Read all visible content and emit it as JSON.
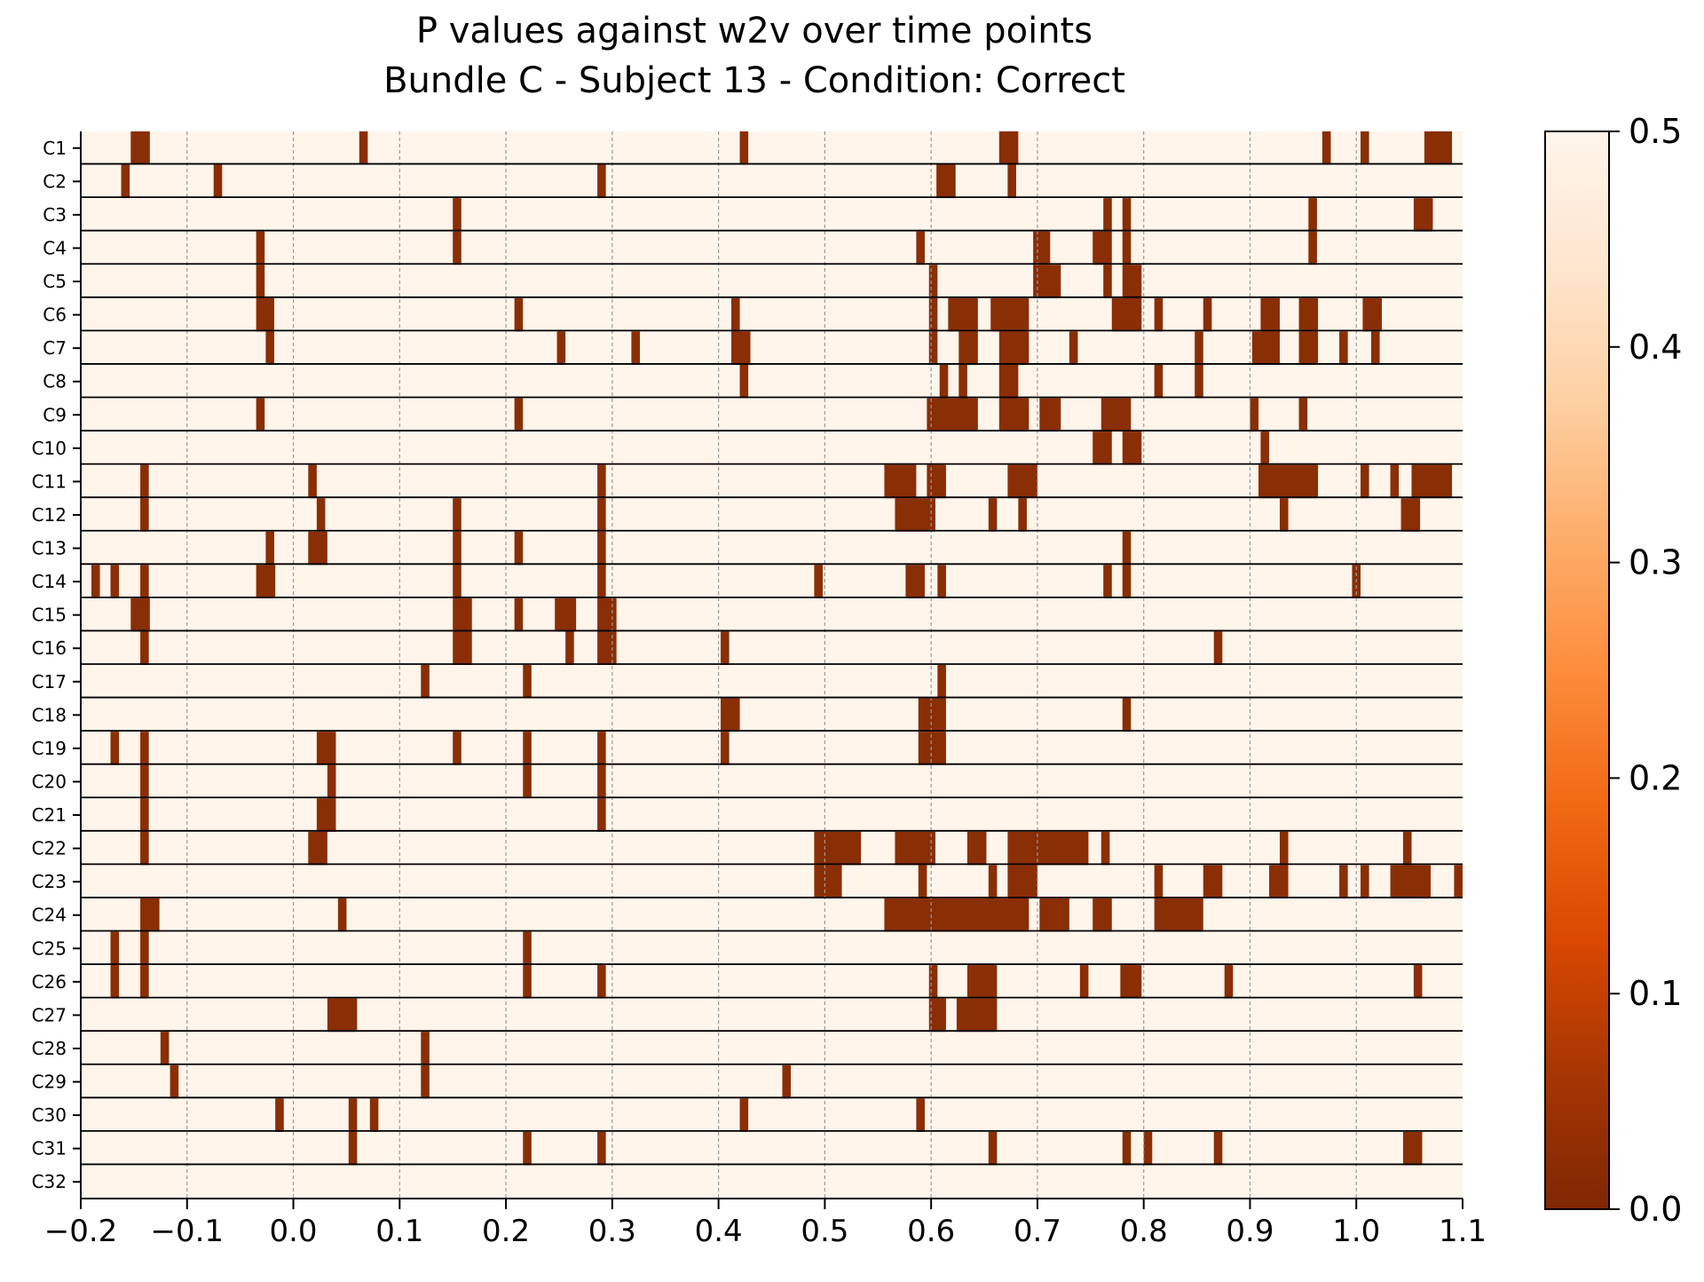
{
  "chart_data": {
    "type": "heatmap",
    "title": [
      "P values against w2v over time points",
      "Bundle C - Subject 13 - Condition: Correct"
    ],
    "xlabel": "",
    "ylabel": "",
    "xlim": [
      -0.2,
      1.1
    ],
    "xticks": [
      -0.2,
      -0.1,
      0.0,
      0.1,
      0.2,
      0.3,
      0.4,
      0.5,
      0.6,
      0.7,
      0.8,
      0.9,
      1.0,
      1.1
    ],
    "xtick_labels": [
      "−0.2",
      "−0.1",
      "0.0",
      "0.1",
      "0.2",
      "0.3",
      "0.4",
      "0.5",
      "0.6",
      "0.7",
      "0.8",
      "0.9",
      "1.0",
      "1.1"
    ],
    "grid": "vertical dashed at x ticks",
    "colormap": "Oranges reversed",
    "colorbar": {
      "range": [
        0.0,
        0.5
      ],
      "ticks": [
        0.0,
        0.1,
        0.2,
        0.3,
        0.4,
        0.5
      ],
      "tick_labels": [
        "0.0",
        "0.1",
        "0.2",
        "0.3",
        "0.4",
        "0.5"
      ],
      "colors": [
        "#7f2704",
        "#a63603",
        "#d94801",
        "#f16913",
        "#fd8d3c",
        "#fdae6b",
        "#fdd0a2",
        "#fee6ce",
        "#fff5eb"
      ]
    },
    "background_value": 0.5,
    "significant_color": "#8a2e06",
    "series": [
      {
        "name": "C1",
        "segments": [
          [
            -0.153,
            -0.135
          ],
          [
            0.062,
            0.07
          ],
          [
            0.42,
            0.428
          ],
          [
            0.664,
            0.682
          ],
          [
            0.968,
            0.976
          ],
          [
            1.004,
            1.012
          ],
          [
            1.064,
            1.09
          ]
        ]
      },
      {
        "name": "C2",
        "segments": [
          [
            -0.162,
            -0.154
          ],
          [
            -0.075,
            -0.067
          ],
          [
            0.286,
            0.294
          ],
          [
            0.605,
            0.623
          ],
          [
            0.672,
            0.68
          ]
        ]
      },
      {
        "name": "C3",
        "segments": [
          [
            0.15,
            0.158
          ],
          [
            0.762,
            0.77
          ],
          [
            0.78,
            0.788
          ],
          [
            0.955,
            0.963
          ],
          [
            1.054,
            1.072
          ]
        ]
      },
      {
        "name": "C4",
        "segments": [
          [
            -0.035,
            -0.027
          ],
          [
            0.15,
            0.158
          ],
          [
            0.586,
            0.594
          ],
          [
            0.696,
            0.712
          ],
          [
            0.752,
            0.77
          ],
          [
            0.78,
            0.788
          ],
          [
            0.955,
            0.963
          ]
        ]
      },
      {
        "name": "C5",
        "segments": [
          [
            -0.035,
            -0.027
          ],
          [
            0.598,
            0.606
          ],
          [
            0.696,
            0.722
          ],
          [
            0.762,
            0.77
          ],
          [
            0.78,
            0.798
          ]
        ]
      },
      {
        "name": "C6",
        "segments": [
          [
            -0.035,
            -0.018
          ],
          [
            0.208,
            0.216
          ],
          [
            0.412,
            0.42
          ],
          [
            0.598,
            0.606
          ],
          [
            0.616,
            0.644
          ],
          [
            0.656,
            0.692
          ],
          [
            0.77,
            0.798
          ],
          [
            0.81,
            0.818
          ],
          [
            0.856,
            0.864
          ],
          [
            0.91,
            0.928
          ],
          [
            0.946,
            0.964
          ],
          [
            1.006,
            1.024
          ]
        ]
      },
      {
        "name": "C7",
        "segments": [
          [
            -0.026,
            -0.018
          ],
          [
            0.248,
            0.256
          ],
          [
            0.318,
            0.326
          ],
          [
            0.412,
            0.43
          ],
          [
            0.598,
            0.606
          ],
          [
            0.626,
            0.644
          ],
          [
            0.664,
            0.692
          ],
          [
            0.73,
            0.738
          ],
          [
            0.848,
            0.856
          ],
          [
            0.902,
            0.928
          ],
          [
            0.946,
            0.964
          ],
          [
            0.984,
            0.992
          ],
          [
            1.014,
            1.022
          ]
        ]
      },
      {
        "name": "C8",
        "segments": [
          [
            0.42,
            0.428
          ],
          [
            0.608,
            0.616
          ],
          [
            0.626,
            0.634
          ],
          [
            0.664,
            0.682
          ],
          [
            0.81,
            0.818
          ],
          [
            0.848,
            0.856
          ]
        ]
      },
      {
        "name": "C9",
        "segments": [
          [
            -0.035,
            -0.027
          ],
          [
            0.208,
            0.216
          ],
          [
            0.596,
            0.644
          ],
          [
            0.664,
            0.692
          ],
          [
            0.702,
            0.722
          ],
          [
            0.76,
            0.788
          ],
          [
            0.9,
            0.908
          ],
          [
            0.946,
            0.954
          ]
        ]
      },
      {
        "name": "C10",
        "segments": [
          [
            0.752,
            0.77
          ],
          [
            0.78,
            0.798
          ],
          [
            0.91,
            0.918
          ]
        ]
      },
      {
        "name": "C11",
        "segments": [
          [
            -0.144,
            -0.136
          ],
          [
            0.014,
            0.022
          ],
          [
            0.286,
            0.294
          ],
          [
            0.556,
            0.586
          ],
          [
            0.596,
            0.614
          ],
          [
            0.672,
            0.7
          ],
          [
            0.908,
            0.964
          ],
          [
            1.004,
            1.012
          ],
          [
            1.032,
            1.04
          ],
          [
            1.052,
            1.09
          ]
        ]
      },
      {
        "name": "C12",
        "segments": [
          [
            -0.144,
            -0.136
          ],
          [
            0.022,
            0.03
          ],
          [
            0.15,
            0.158
          ],
          [
            0.286,
            0.294
          ],
          [
            0.566,
            0.604
          ],
          [
            0.654,
            0.662
          ],
          [
            0.682,
            0.69
          ],
          [
            0.928,
            0.936
          ],
          [
            1.042,
            1.06
          ]
        ]
      },
      {
        "name": "C13",
        "segments": [
          [
            -0.026,
            -0.018
          ],
          [
            0.014,
            0.032
          ],
          [
            0.15,
            0.158
          ],
          [
            0.208,
            0.216
          ],
          [
            0.286,
            0.294
          ],
          [
            0.78,
            0.788
          ]
        ]
      },
      {
        "name": "C14",
        "segments": [
          [
            -0.19,
            -0.182
          ],
          [
            -0.172,
            -0.164
          ],
          [
            -0.144,
            -0.136
          ],
          [
            -0.035,
            -0.017
          ],
          [
            0.15,
            0.158
          ],
          [
            0.286,
            0.294
          ],
          [
            0.49,
            0.498
          ],
          [
            0.576,
            0.594
          ],
          [
            0.606,
            0.614
          ],
          [
            0.762,
            0.77
          ],
          [
            0.78,
            0.788
          ],
          [
            0.996,
            1.004
          ]
        ]
      },
      {
        "name": "C15",
        "segments": [
          [
            -0.153,
            -0.135
          ],
          [
            0.15,
            0.168
          ],
          [
            0.208,
            0.216
          ],
          [
            0.246,
            0.266
          ],
          [
            0.286,
            0.304
          ]
        ]
      },
      {
        "name": "C16",
        "segments": [
          [
            -0.144,
            -0.136
          ],
          [
            0.15,
            0.168
          ],
          [
            0.256,
            0.264
          ],
          [
            0.286,
            0.304
          ],
          [
            0.402,
            0.41
          ],
          [
            0.866,
            0.874
          ]
        ]
      },
      {
        "name": "C17",
        "segments": [
          [
            0.12,
            0.128
          ],
          [
            0.216,
            0.224
          ],
          [
            0.606,
            0.614
          ]
        ]
      },
      {
        "name": "C18",
        "segments": [
          [
            0.402,
            0.42
          ],
          [
            0.588,
            0.614
          ],
          [
            0.78,
            0.788
          ]
        ]
      },
      {
        "name": "C19",
        "segments": [
          [
            -0.172,
            -0.164
          ],
          [
            -0.144,
            -0.136
          ],
          [
            0.022,
            0.04
          ],
          [
            0.15,
            0.158
          ],
          [
            0.216,
            0.224
          ],
          [
            0.286,
            0.294
          ],
          [
            0.402,
            0.41
          ],
          [
            0.588,
            0.614
          ]
        ]
      },
      {
        "name": "C20",
        "segments": [
          [
            -0.144,
            -0.136
          ],
          [
            0.032,
            0.04
          ],
          [
            0.216,
            0.224
          ],
          [
            0.286,
            0.294
          ]
        ]
      },
      {
        "name": "C21",
        "segments": [
          [
            -0.144,
            -0.136
          ],
          [
            0.022,
            0.04
          ],
          [
            0.286,
            0.294
          ]
        ]
      },
      {
        "name": "C22",
        "segments": [
          [
            -0.144,
            -0.136
          ],
          [
            0.014,
            0.032
          ],
          [
            0.49,
            0.534
          ],
          [
            0.566,
            0.604
          ],
          [
            0.634,
            0.652
          ],
          [
            0.672,
            0.748
          ],
          [
            0.76,
            0.768
          ],
          [
            0.928,
            0.936
          ],
          [
            1.044,
            1.052
          ]
        ]
      },
      {
        "name": "C23",
        "segments": [
          [
            0.49,
            0.516
          ],
          [
            0.588,
            0.596
          ],
          [
            0.654,
            0.662
          ],
          [
            0.672,
            0.7
          ],
          [
            0.81,
            0.818
          ],
          [
            0.856,
            0.874
          ],
          [
            0.918,
            0.936
          ],
          [
            0.984,
            0.992
          ],
          [
            1.004,
            1.012
          ],
          [
            1.032,
            1.07
          ],
          [
            1.092,
            1.1
          ]
        ]
      },
      {
        "name": "C24",
        "segments": [
          [
            -0.144,
            -0.126
          ],
          [
            0.042,
            0.05
          ],
          [
            0.556,
            0.692
          ],
          [
            0.702,
            0.73
          ],
          [
            0.752,
            0.77
          ],
          [
            0.81,
            0.856
          ]
        ]
      },
      {
        "name": "C25",
        "segments": [
          [
            -0.172,
            -0.164
          ],
          [
            -0.144,
            -0.136
          ],
          [
            0.216,
            0.224
          ]
        ]
      },
      {
        "name": "C26",
        "segments": [
          [
            -0.172,
            -0.164
          ],
          [
            -0.144,
            -0.136
          ],
          [
            0.216,
            0.224
          ],
          [
            0.286,
            0.294
          ],
          [
            0.598,
            0.606
          ],
          [
            0.634,
            0.662
          ],
          [
            0.74,
            0.748
          ],
          [
            0.778,
            0.798
          ],
          [
            0.876,
            0.884
          ],
          [
            1.054,
            1.062
          ]
        ]
      },
      {
        "name": "C27",
        "segments": [
          [
            0.032,
            0.06
          ],
          [
            0.598,
            0.614
          ],
          [
            0.624,
            0.662
          ]
        ]
      },
      {
        "name": "C28",
        "segments": [
          [
            -0.125,
            -0.117
          ],
          [
            0.12,
            0.128
          ]
        ]
      },
      {
        "name": "C29",
        "segments": [
          [
            -0.116,
            -0.108
          ],
          [
            0.12,
            0.128
          ],
          [
            0.46,
            0.468
          ]
        ]
      },
      {
        "name": "C30",
        "segments": [
          [
            -0.017,
            -0.009
          ],
          [
            0.052,
            0.06
          ],
          [
            0.072,
            0.08
          ],
          [
            0.42,
            0.428
          ],
          [
            0.586,
            0.594
          ]
        ]
      },
      {
        "name": "C31",
        "segments": [
          [
            0.052,
            0.06
          ],
          [
            0.216,
            0.224
          ],
          [
            0.286,
            0.294
          ],
          [
            0.654,
            0.662
          ],
          [
            0.78,
            0.788
          ],
          [
            0.8,
            0.808
          ],
          [
            0.866,
            0.874
          ],
          [
            1.044,
            1.062
          ]
        ]
      },
      {
        "name": "C32",
        "segments": []
      }
    ]
  }
}
